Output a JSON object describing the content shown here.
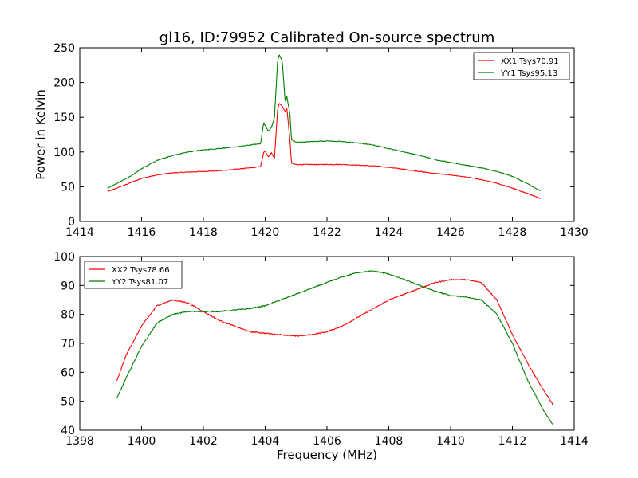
{
  "title": "gl16, ID:79952 Calibrated On-source spectrum",
  "colors": {
    "red": "#ff0000",
    "green": "#008000",
    "axes": "#000000",
    "background": "#ffffff"
  },
  "chart_data": [
    {
      "type": "line",
      "title": "gl16, ID:79952 Calibrated On-source spectrum",
      "xlabel": "",
      "ylabel": "Power in Kelvin",
      "xlim": [
        1414,
        1430
      ],
      "ylim": [
        0,
        250
      ],
      "xticks": [
        "1414",
        "1416",
        "1418",
        "1420",
        "1422",
        "1424",
        "1426",
        "1428",
        "1430"
      ],
      "yticks": [
        "0",
        "50",
        "100",
        "150",
        "200",
        "250"
      ],
      "grid": false,
      "legend_position": "top-right",
      "series": [
        {
          "name": "XX1 Tsys70.91",
          "color": "#ff0000",
          "x": [
            1414.9,
            1415.2,
            1415.6,
            1416.0,
            1416.5,
            1417.0,
            1417.5,
            1418.0,
            1418.5,
            1419.0,
            1419.5,
            1419.85,
            1419.95,
            1420.0,
            1420.1,
            1420.2,
            1420.3,
            1420.4,
            1420.45,
            1420.55,
            1420.65,
            1420.7,
            1420.8,
            1420.85,
            1421.0,
            1421.5,
            1422.0,
            1422.5,
            1423.0,
            1423.5,
            1424.0,
            1424.5,
            1425.0,
            1425.5,
            1426.0,
            1426.5,
            1427.0,
            1427.5,
            1428.0,
            1428.5,
            1428.9
          ],
          "y": [
            43,
            48,
            55,
            62,
            67,
            70,
            71,
            72,
            73,
            75,
            77,
            79,
            99,
            101,
            93,
            99,
            91,
            160,
            170,
            166,
            158,
            163,
            118,
            84,
            82,
            82,
            82,
            82,
            81,
            80,
            78,
            75,
            72,
            69,
            67,
            64,
            60,
            55,
            48,
            40,
            33
          ]
        },
        {
          "name": "YY1 Tsys95.13",
          "color": "#008000",
          "x": [
            1414.9,
            1415.2,
            1415.6,
            1416.0,
            1416.5,
            1417.0,
            1417.5,
            1418.0,
            1418.5,
            1419.0,
            1419.5,
            1419.85,
            1419.95,
            1420.0,
            1420.1,
            1420.2,
            1420.3,
            1420.4,
            1420.45,
            1420.55,
            1420.65,
            1420.7,
            1420.8,
            1420.85,
            1421.0,
            1421.5,
            1422.0,
            1422.5,
            1423.0,
            1423.5,
            1424.0,
            1424.5,
            1425.0,
            1425.5,
            1426.0,
            1426.5,
            1427.0,
            1427.5,
            1428.0,
            1428.5,
            1428.9
          ],
          "y": [
            48,
            55,
            64,
            76,
            88,
            95,
            100,
            103,
            105,
            107,
            110,
            112,
            142,
            138,
            130,
            135,
            150,
            230,
            240,
            232,
            170,
            180,
            155,
            118,
            114,
            115,
            116,
            115,
            113,
            110,
            105,
            100,
            95,
            89,
            85,
            81,
            77,
            72,
            65,
            54,
            44
          ]
        }
      ]
    },
    {
      "type": "line",
      "title": "",
      "xlabel": "Frequency (MHz)",
      "ylabel": "",
      "xlim": [
        1398,
        1414
      ],
      "ylim": [
        40,
        100
      ],
      "xticks": [
        "1398",
        "1400",
        "1402",
        "1404",
        "1406",
        "1408",
        "1410",
        "1412",
        "1414"
      ],
      "yticks": [
        "40",
        "50",
        "60",
        "70",
        "80",
        "90",
        "100"
      ],
      "grid": false,
      "legend_position": "top-left",
      "series": [
        {
          "name": "XX2 Tsys78.66",
          "color": "#ff0000",
          "x": [
            1399.2,
            1399.5,
            1400.0,
            1400.5,
            1401.0,
            1401.5,
            1402.0,
            1402.5,
            1403.0,
            1403.5,
            1404.0,
            1404.5,
            1405.0,
            1405.5,
            1406.0,
            1406.5,
            1407.0,
            1407.5,
            1408.0,
            1408.5,
            1409.0,
            1409.5,
            1410.0,
            1410.5,
            1411.0,
            1411.5,
            1412.0,
            1412.5,
            1413.0,
            1413.3
          ],
          "y": [
            57,
            66,
            76,
            83,
            85,
            84,
            81,
            78,
            76,
            74,
            73.5,
            73,
            72.5,
            73,
            74,
            76,
            79,
            82,
            85,
            87,
            89,
            91,
            92,
            92,
            91,
            85,
            73,
            63,
            54,
            49
          ]
        },
        {
          "name": "YY2 Tsys81.07",
          "color": "#008000",
          "x": [
            1399.2,
            1399.5,
            1400.0,
            1400.5,
            1401.0,
            1401.5,
            1402.0,
            1402.5,
            1403.0,
            1403.5,
            1404.0,
            1404.5,
            1405.0,
            1405.5,
            1406.0,
            1406.5,
            1407.0,
            1407.5,
            1408.0,
            1408.5,
            1409.0,
            1409.5,
            1410.0,
            1410.5,
            1411.0,
            1411.5,
            1412.0,
            1412.5,
            1413.0,
            1413.3
          ],
          "y": [
            51,
            58,
            69,
            77,
            80,
            81,
            81,
            81,
            81.5,
            82,
            83,
            85,
            87,
            89,
            91,
            93,
            94.5,
            95,
            94,
            92,
            90,
            88,
            86.5,
            86,
            85,
            80,
            70,
            57,
            47,
            42
          ]
        }
      ]
    }
  ]
}
